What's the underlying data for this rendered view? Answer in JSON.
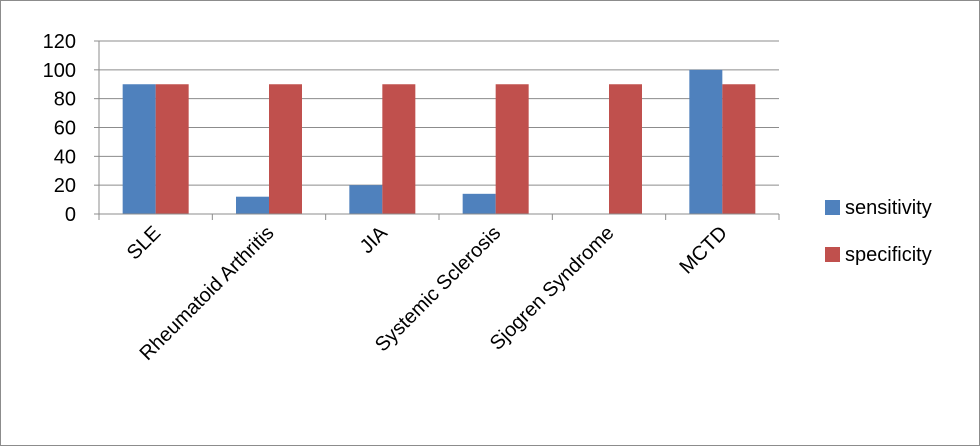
{
  "chart_data": {
    "type": "bar",
    "title": "",
    "xlabel": "",
    "ylabel": "",
    "categories": [
      "SLE",
      "Rheumatoid Arthritis",
      "JIA",
      "Systemic Sclerosis",
      "Sjogren Syndrome",
      "MCTD"
    ],
    "series": [
      {
        "name": "sensitivity",
        "color": "#4f81bd",
        "values": [
          90,
          12,
          20,
          14,
          0,
          100
        ]
      },
      {
        "name": "specificity",
        "color": "#c0504d",
        "values": [
          90,
          90,
          90,
          90,
          90,
          90
        ]
      }
    ],
    "ylim": [
      0,
      120
    ],
    "yticks": [
      0,
      20,
      40,
      60,
      80,
      100,
      120
    ],
    "grid": true,
    "legend_position": "right"
  }
}
